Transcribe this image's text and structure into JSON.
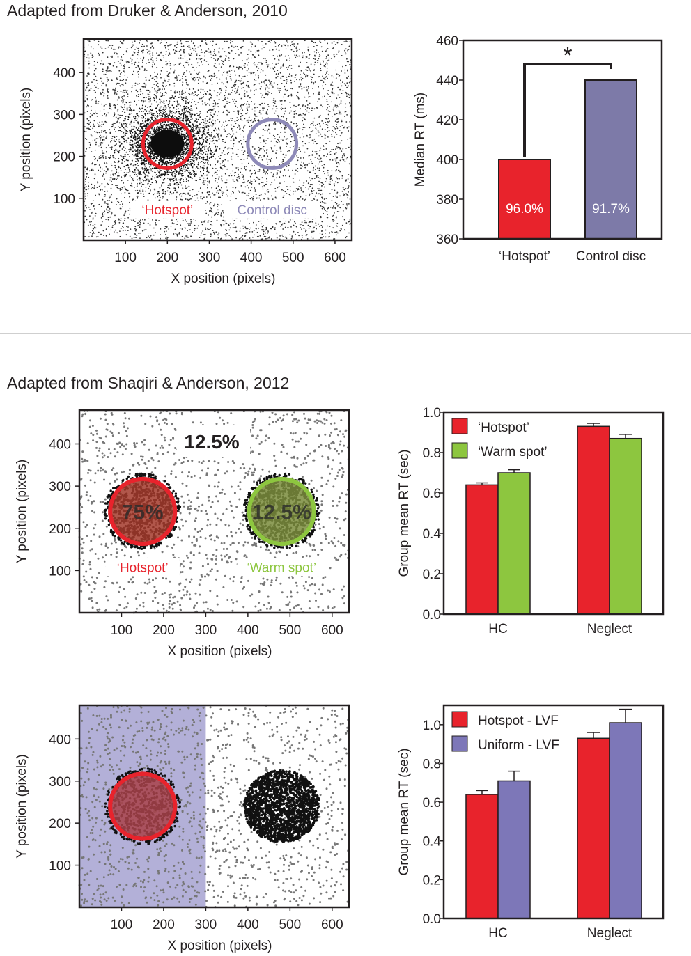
{
  "sections": {
    "top_heading": "Adapted from Druker & Anderson, 2010",
    "bottom_heading": "Adapted from Shaqiri & Anderson, 2012"
  },
  "colors": {
    "red": "#e8232c",
    "purple": "#7d7aa8",
    "green": "#8dc63f",
    "lavender": "#b3b0d8",
    "axis": "#231f20"
  },
  "chart_data": [
    {
      "id": "druker-scatter",
      "type": "scatter",
      "xlabel": "X position (pixels)",
      "ylabel": "Y position (pixels)",
      "xlim": [
        0,
        640
      ],
      "ylim": [
        0,
        480
      ],
      "xticks": [
        100,
        200,
        300,
        400,
        500,
        600
      ],
      "yticks": [
        100,
        200,
        300,
        400
      ],
      "background": "dense uniform dots",
      "cluster": {
        "x": 200,
        "y": 230,
        "spread": 50,
        "count": 2600
      },
      "uniform_count": 4500,
      "circles": [
        {
          "label": "‘Hotspot’",
          "x": 200,
          "y": 230,
          "r": 58,
          "color": "#e8232c"
        },
        {
          "label": "Control disc",
          "x": 450,
          "y": 230,
          "r": 58,
          "color": "#8e8ab8"
        }
      ],
      "labels": [
        {
          "text": "‘Hotspot’",
          "x": 200,
          "y": 65,
          "color": "#e8232c"
        },
        {
          "text": "Control disc",
          "x": 450,
          "y": 65,
          "color": "#8e8ab8"
        }
      ]
    },
    {
      "id": "druker-bar",
      "type": "bar",
      "ylabel": "Median RT (ms)",
      "ylim": [
        360,
        460
      ],
      "yticks": [
        360,
        380,
        400,
        420,
        440,
        460
      ],
      "categories": [
        "‘Hotspot’",
        "Control disc"
      ],
      "values": [
        400,
        440
      ],
      "bar_colors": [
        "#e8232c",
        "#7d7aa8"
      ],
      "data_labels": [
        "96.0%",
        "91.7%"
      ],
      "significance": "*"
    },
    {
      "id": "shaqiri-scatter-1",
      "type": "scatter",
      "xlabel": "X position (pixels)",
      "ylabel": "Y position (pixels)",
      "xlim": [
        0,
        640
      ],
      "ylim": [
        0,
        480
      ],
      "xticks": [
        100,
        200,
        300,
        400,
        500,
        600
      ],
      "yticks": [
        100,
        200,
        300,
        400
      ],
      "uniform_count": 1300,
      "disc_dot_count": 900,
      "discs": [
        {
          "x": 150,
          "y": 240,
          "r": 82,
          "fill": "#a33a2c",
          "stroke": "#e8232c",
          "text": "75%"
        },
        {
          "x": 480,
          "y": 240,
          "r": 82,
          "fill": "#7a8c3c",
          "stroke": "#8dc63f",
          "text": "12.5%"
        }
      ],
      "annotation": "12.5%",
      "labels": [
        {
          "text": "‘Hotspot’",
          "x": 150,
          "y": 100,
          "color": "#e8232c"
        },
        {
          "text": "‘Warm spot’",
          "x": 480,
          "y": 100,
          "color": "#8dc63f"
        }
      ]
    },
    {
      "id": "shaqiri-bar-1",
      "type": "bar",
      "ylabel": "Group mean RT (sec)",
      "ylim": [
        0.0,
        1.0
      ],
      "yticks": [
        "0.0",
        "0.2",
        "0.4",
        "0.6",
        "0.8",
        "1.0"
      ],
      "categories": [
        "HC",
        "Neglect"
      ],
      "series": [
        {
          "name": "‘Hotspot’",
          "color": "#e8232c",
          "values": [
            0.64,
            0.93
          ],
          "errors": [
            0.01,
            0.015
          ]
        },
        {
          "name": "‘Warm spot’",
          "color": "#8dc63f",
          "values": [
            0.7,
            0.87
          ],
          "errors": [
            0.015,
            0.02
          ]
        }
      ]
    },
    {
      "id": "shaqiri-scatter-2",
      "type": "scatter",
      "xlabel": "X position (pixels)",
      "ylabel": "Y position (pixels)",
      "xlim": [
        0,
        640
      ],
      "ylim": [
        0,
        480
      ],
      "xticks": [
        100,
        200,
        300,
        400,
        500,
        600
      ],
      "yticks": [
        100,
        200,
        300,
        400
      ],
      "uniform_count": 1300,
      "shaded_region": {
        "x_from": 0,
        "x_to": 300,
        "color": "#b3b0d8"
      },
      "discs": [
        {
          "x": 150,
          "y": 240,
          "r": 82,
          "fill": "#a8424a",
          "stroke": "#e8232c",
          "text": ""
        }
      ],
      "cluster": {
        "x": 480,
        "y": 240,
        "r": 90,
        "count": 1700
      }
    },
    {
      "id": "shaqiri-bar-2",
      "type": "bar",
      "ylabel": "Group mean RT (sec)",
      "ylim": [
        0.0,
        1.1
      ],
      "yticks": [
        "0.0",
        "0.2",
        "0.4",
        "0.6",
        "0.8",
        "1.0"
      ],
      "categories": [
        "HC",
        "Neglect"
      ],
      "series": [
        {
          "name": "Hotspot - LVF",
          "color": "#e8232c",
          "values": [
            0.64,
            0.93
          ],
          "errors": [
            0.02,
            0.03
          ]
        },
        {
          "name": "Uniform - LVF",
          "color": "#7d77b8",
          "values": [
            0.71,
            1.01
          ],
          "errors": [
            0.05,
            0.07
          ]
        }
      ]
    }
  ]
}
